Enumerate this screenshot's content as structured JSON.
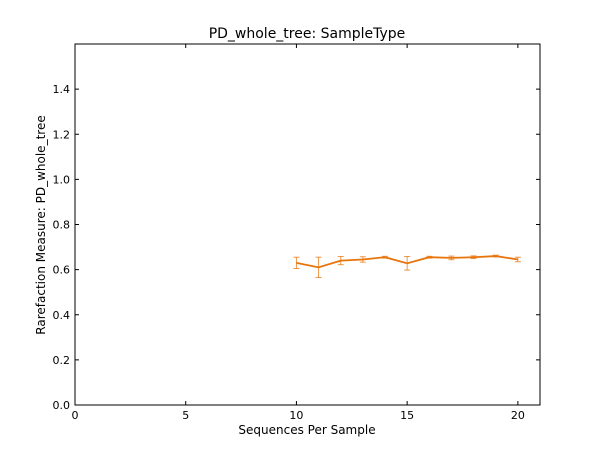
{
  "chart_data": {
    "type": "line",
    "title": "PD_whole_tree: SampleType",
    "xlabel": "Sequences Per Sample",
    "ylabel": "Rarefaction Measure: PD_whole_tree",
    "xlim": [
      0,
      21
    ],
    "ylim": [
      0,
      1.6
    ],
    "xticks": [
      0,
      5,
      10,
      15,
      20
    ],
    "xtick_labels": [
      "0",
      "5",
      "10",
      "15",
      "20"
    ],
    "yticks": [
      0,
      0.2,
      0.4,
      0.6,
      0.8,
      1.0,
      1.2,
      1.4
    ],
    "ytick_labels": [
      "0.0",
      "0.2",
      "0.4",
      "0.6",
      "0.8",
      "1.0",
      "1.2",
      "1.4"
    ],
    "grid": false,
    "series": [
      {
        "color": "#e8740c",
        "x": [
          10,
          11,
          12,
          13,
          14,
          15,
          16,
          17,
          18,
          19,
          20
        ],
        "y": [
          0.63,
          0.61,
          0.64,
          0.645,
          0.655,
          0.628,
          0.655,
          0.652,
          0.655,
          0.66,
          0.645
        ],
        "yerr": [
          0.025,
          0.045,
          0.018,
          0.012,
          0.004,
          0.03,
          0.004,
          0.008,
          0.006,
          0.004,
          0.01
        ]
      }
    ]
  }
}
